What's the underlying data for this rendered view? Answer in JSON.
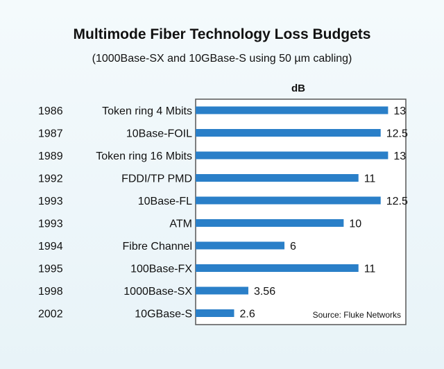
{
  "title": "Multimode Fiber Technology Loss Budgets",
  "subtitle": "(1000Base-SX and 10GBase-S using 50 µm cabling)",
  "source": "Source: Fluke Networks",
  "colors": {
    "bar": "#2a7fc8",
    "frame": "#555555",
    "plot_bg": "#ffffff"
  },
  "chart_data": {
    "type": "bar",
    "orientation": "horizontal",
    "title": "Multimode Fiber Technology Loss Budgets",
    "subtitle": "(1000Base-SX and 10GBase-S using 50 µm cabling)",
    "xlabel": "dB",
    "ylabel": "",
    "xlim": [
      0,
      14.2
    ],
    "grid": false,
    "years": [
      "1986",
      "1987",
      "1989",
      "1992",
      "1993",
      "1993",
      "1994",
      "1995",
      "1998",
      "2002"
    ],
    "categories": [
      "Token ring 4 Mbits",
      "10Base-FOIL",
      "Token ring 16 Mbits",
      "FDDI/TP PMD",
      "10Base-FL",
      "ATM",
      "Fibre Channel",
      "100Base-FX",
      "1000Base-SX",
      "10GBase-S"
    ],
    "values": [
      13,
      12.5,
      13,
      11,
      12.5,
      10,
      6,
      11,
      3.56,
      2.6
    ],
    "value_labels": [
      "13",
      "12.5",
      "13",
      "11",
      "12.5",
      "10",
      "6",
      "11",
      "3.56",
      "2.6"
    ]
  }
}
